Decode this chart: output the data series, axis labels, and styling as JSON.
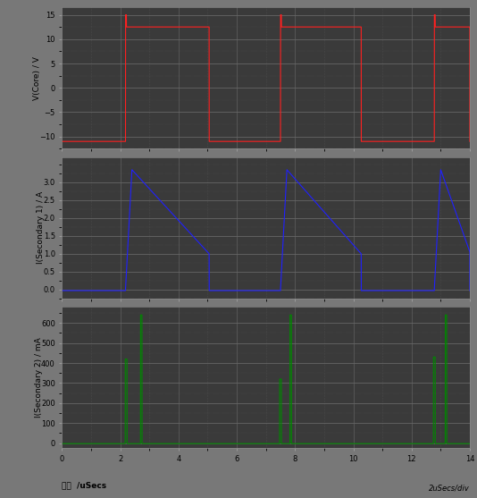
{
  "bg_color": "#787878",
  "plot_bg_color": "#3a3a3a",
  "grid_major_color": "#666666",
  "grid_minor_color": "#555555",
  "border_color": "#888888",
  "panel1_ylabel": "V(Core) / V",
  "panel1_ylim": [
    -12.5,
    16.5
  ],
  "panel1_yticks": [
    -10,
    -5,
    0,
    5,
    10,
    15
  ],
  "panel1_color": "#ff2020",
  "panel2_ylabel": "I(Secondary 1) / A",
  "panel2_ylim": [
    -0.25,
    3.7
  ],
  "panel2_yticks": [
    0,
    0.5,
    1.0,
    1.5,
    2.0,
    2.5,
    3.0
  ],
  "panel2_color": "#2020ff",
  "panel3_ylabel": "I(Secondary 2) / mA",
  "panel3_ylim": [
    -25,
    680
  ],
  "panel3_yticks": [
    0,
    100,
    200,
    300,
    400,
    500,
    600
  ],
  "panel3_color": "#008800",
  "xlabel": "时间  /uSecs",
  "xlabel2": "2uSecs/div",
  "xlim": [
    0,
    14
  ],
  "xticks": [
    0,
    2,
    4,
    6,
    8,
    10,
    12,
    14
  ]
}
